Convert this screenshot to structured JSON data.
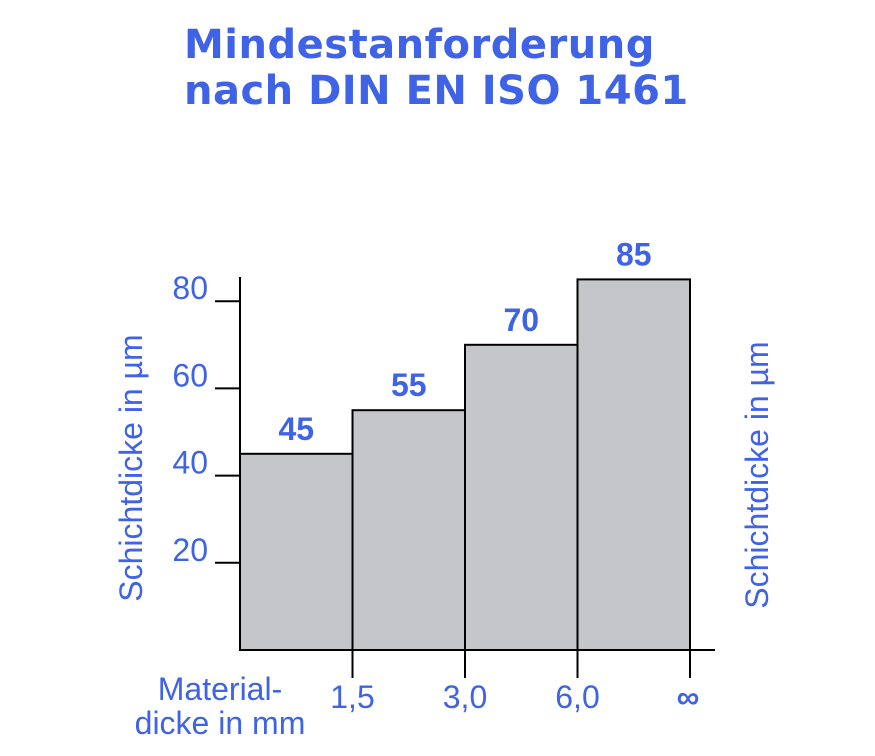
{
  "chart_data": {
    "type": "bar",
    "title": [
      "Mindestanforderung",
      "nach DIN EN ISO 1461"
    ],
    "ylabel": "Schichtdicke in µm",
    "ylabel_right": "Schichtdicke in µm",
    "xlabel": [
      "Material-",
      "dicke in mm"
    ],
    "x_boundaries": [
      "1,5",
      "3,0",
      "6,0",
      "∞"
    ],
    "values": [
      45,
      55,
      70,
      85
    ],
    "value_labels": [
      "45",
      "55",
      "70",
      "85"
    ],
    "yticks": [
      20,
      40,
      60,
      80
    ],
    "ytick_labels": [
      "20",
      "40",
      "60",
      "80"
    ],
    "ylim": [
      0,
      86
    ],
    "grid": false,
    "colors": {
      "accent": "#3f63e6",
      "bar_fill": "#c4c6c9",
      "bar_stroke": "#000000"
    }
  }
}
